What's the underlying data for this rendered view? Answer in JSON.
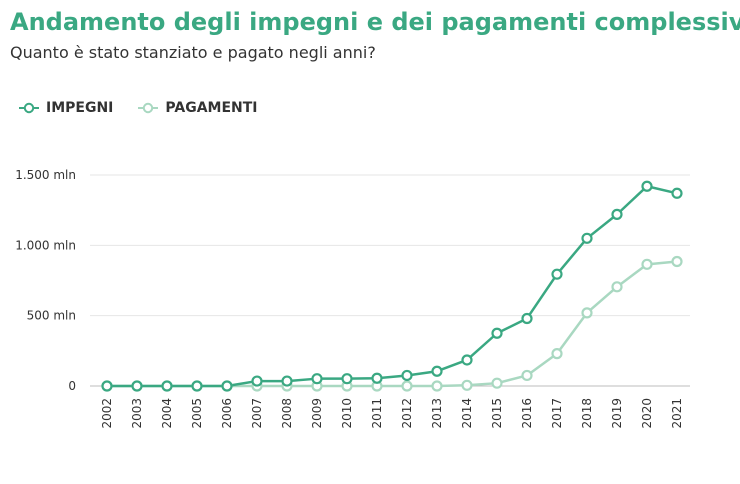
{
  "chart_data": {
    "type": "line",
    "title": "Andamento degli impegni e dei pagamenti complessivi",
    "subtitle": "Quanto è stato stanziato e pagato negli anni?",
    "x": [
      "2002",
      "2003",
      "2004",
      "2005",
      "2006",
      "2007",
      "2008",
      "2009",
      "2010",
      "2011",
      "2012",
      "2013",
      "2014",
      "2015",
      "2016",
      "2017",
      "2018",
      "2019",
      "2020",
      "2021"
    ],
    "series": [
      {
        "name": "IMPEGNI",
        "color": "#3aa882",
        "values": [
          0,
          0,
          0,
          0,
          0,
          35,
          35,
          52,
          52,
          55,
          75,
          105,
          185,
          375,
          480,
          795,
          1050,
          1220,
          1420,
          1370
        ]
      },
      {
        "name": "PAGAMENTI",
        "color": "#a9d8c1",
        "values": [
          0,
          0,
          0,
          0,
          0,
          0,
          0,
          0,
          0,
          0,
          0,
          0,
          5,
          20,
          75,
          230,
          520,
          705,
          865,
          885
        ]
      }
    ],
    "y_ticks": [
      {
        "value": 0,
        "label": "0"
      },
      {
        "value": 500,
        "label": "500 mln"
      },
      {
        "value": 1000,
        "label": "1.000 mln"
      },
      {
        "value": 1500,
        "label": "1.500 mln"
      }
    ],
    "ylim": [
      0,
      1500
    ],
    "grid": true,
    "legend_position": "top-left"
  }
}
